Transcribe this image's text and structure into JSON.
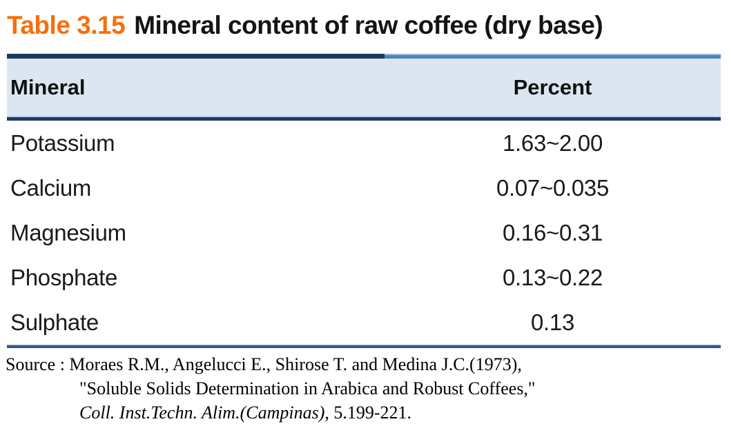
{
  "title": {
    "number": "Table 3.15",
    "caption": "Mineral content of raw coffee (dry base)"
  },
  "table": {
    "columns": [
      "Mineral",
      "Percent"
    ],
    "rows": [
      {
        "mineral": "Potassium",
        "percent": "1.63~2.00"
      },
      {
        "mineral": "Calcium",
        "percent": "0.07~0.035"
      },
      {
        "mineral": "Magnesium",
        "percent": "0.16~0.31"
      },
      {
        "mineral": "Phosphate",
        "percent": "0.13~0.22"
      },
      {
        "mineral": "Sulphate",
        "percent": "0.13"
      }
    ]
  },
  "source": {
    "line1": "Source : Moraes R.M., Angelucci E., Shirose T. and Medina J.C.(1973),",
    "line2": "\"Soluble Solids Determination in Arabica and Robust Coffees,\"",
    "line3_italic": "Coll. Inst.Techn. Alim.(Campinas)",
    "line3_rest": ", 5.199-221."
  },
  "colors": {
    "accent_orange": "#F86E0A",
    "dark_navy": "#1F3864",
    "steel_blue": "#4F81BD",
    "header_background": "#DCE6F1",
    "bottom_rule": "#34588C"
  },
  "chart_data": {
    "type": "table",
    "title": "Table 3.15 Mineral content of raw coffee (dry base)",
    "columns": [
      "Mineral",
      "Percent"
    ],
    "rows": [
      [
        "Potassium",
        "1.63~2.00"
      ],
      [
        "Calcium",
        "0.07~0.035"
      ],
      [
        "Magnesium",
        "0.16~0.31"
      ],
      [
        "Phosphate",
        "0.13~0.22"
      ],
      [
        "Sulphate",
        "0.13"
      ]
    ],
    "source": "Source : Moraes R.M., Angelucci E., Shirose T. and Medina J.C.(1973), \"Soluble Solids Determination in Arabica and Robust Coffees,\" Coll. Inst.Techn. Alim.(Campinas), 5.199-221."
  }
}
